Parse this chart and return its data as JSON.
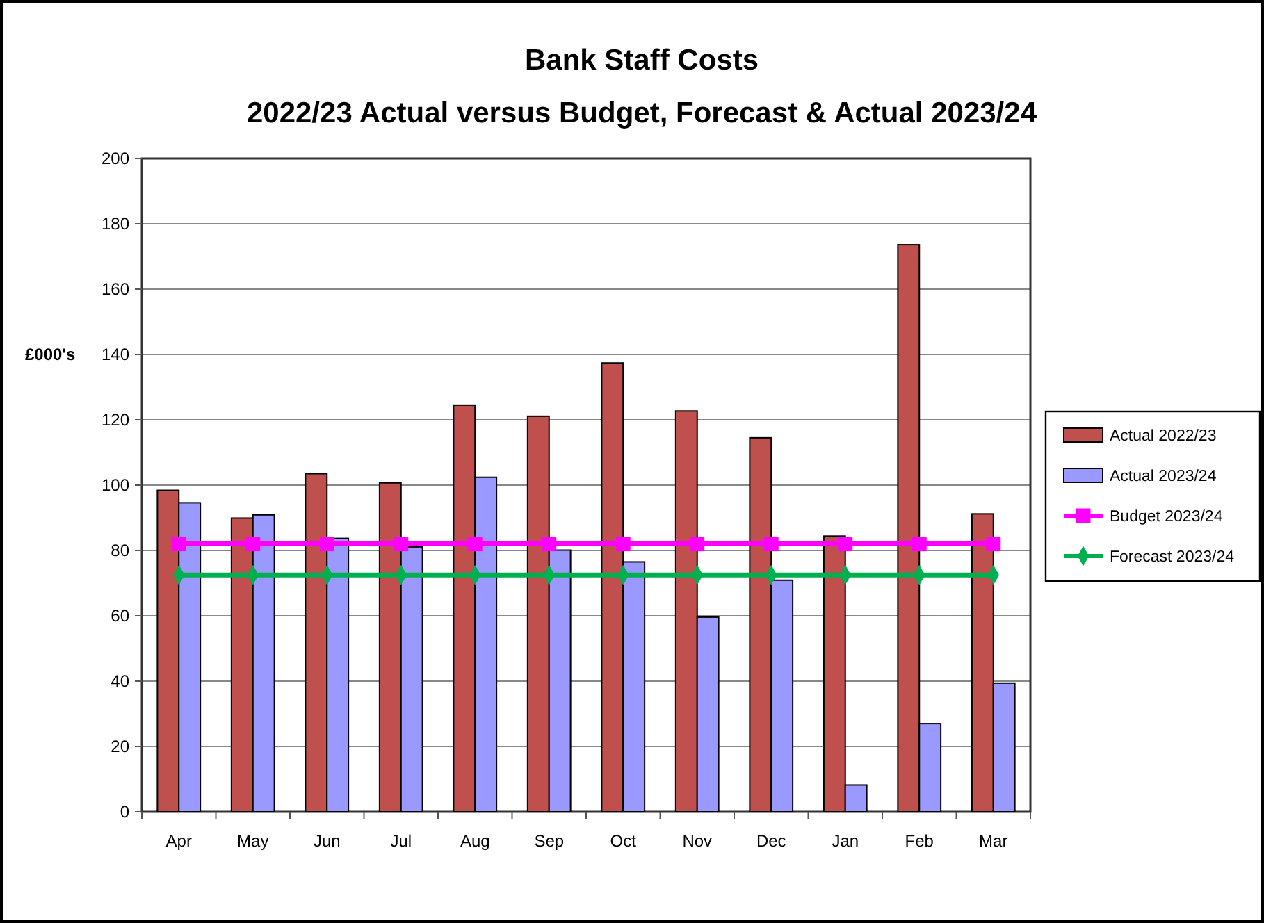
{
  "chart_data": {
    "type": "bar",
    "title": "Bank Staff Costs",
    "subtitle": "2022/23 Actual versus Budget, Forecast & Actual 2023/24",
    "ylabel": "£000's",
    "categories": [
      "Apr",
      "May",
      "Jun",
      "Jul",
      "Aug",
      "Sep",
      "Oct",
      "Nov",
      "Dec",
      "Jan",
      "Feb",
      "Mar"
    ],
    "series": [
      {
        "name": "Actual 2022/23",
        "color": "#c0504d",
        "values": [
          98.4,
          89.9,
          103.5,
          100.7,
          124.5,
          121.1,
          137.4,
          122.7,
          114.5,
          84.4,
          173.6,
          91.2
        ]
      },
      {
        "name": "Actual 2023/24",
        "color": "#9999ff",
        "values": [
          94.6,
          90.9,
          83.7,
          81.1,
          102.4,
          80.1,
          76.5,
          59.6,
          70.9,
          8.2,
          27,
          39.4
        ]
      },
      {
        "name": "Budget 2023/24",
        "type": "line",
        "marker": "square",
        "color": "#ff00ff",
        "values": [
          82,
          82,
          82,
          82,
          82,
          82,
          82,
          82,
          82,
          82,
          82,
          82
        ]
      },
      {
        "name": "Forecast 2023/24",
        "type": "line",
        "marker": "diamond",
        "color": "#00b050",
        "values": [
          72.5,
          72.5,
          72.5,
          72.5,
          72.5,
          72.5,
          72.5,
          72.5,
          72.5,
          72.5,
          72.5,
          72.5
        ]
      }
    ],
    "ylim": [
      0,
      200
    ],
    "yticks": [
      0,
      20,
      40,
      60,
      80,
      100,
      120,
      140,
      160,
      180,
      200
    ],
    "grid": "y",
    "legend": "right"
  }
}
